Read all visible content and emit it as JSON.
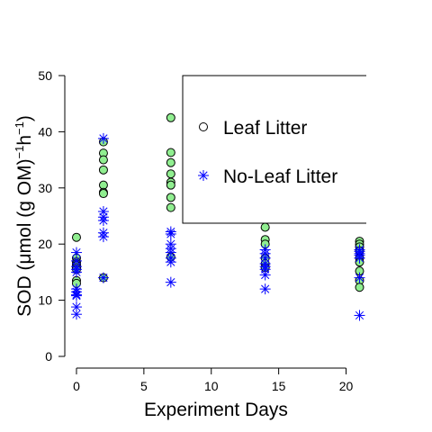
{
  "chart_data": {
    "type": "scatter",
    "xlabel": "Experiment Days",
    "ylabel_main": "SOD (",
    "ylabel_mu": "μ",
    "ylabel_mid": "mol (g OM)",
    "ylabel_sup1": "−1",
    "ylabel_h": "h",
    "ylabel_sup2": "−1",
    "ylabel_end": ")",
    "xlim": [
      -1,
      21.5
    ],
    "ylim": [
      0,
      50
    ],
    "xticks": [
      0,
      5,
      10,
      15,
      20
    ],
    "yticks": [
      0,
      10,
      20,
      30,
      40,
      50
    ],
    "legend_position": "top-right",
    "series": [
      {
        "name": "Leaf Litter",
        "marker": "circle",
        "fill": "#90ee90",
        "stroke": "#000000",
        "points": [
          [
            0,
            21.2
          ],
          [
            0,
            17.5
          ],
          [
            0,
            16.8
          ],
          [
            0,
            16.5
          ],
          [
            0,
            16.2
          ],
          [
            0,
            15.8
          ],
          [
            0,
            15.5
          ],
          [
            0,
            13.5
          ],
          [
            0,
            13.0
          ],
          [
            2,
            38.2
          ],
          [
            2,
            36.2
          ],
          [
            2,
            35.0
          ],
          [
            2,
            33.2
          ],
          [
            2,
            30.5
          ],
          [
            2,
            29.2
          ],
          [
            2,
            29.0
          ],
          [
            2,
            14.0
          ],
          [
            7,
            42.5
          ],
          [
            7,
            36.3
          ],
          [
            7,
            34.5
          ],
          [
            7,
            32.5
          ],
          [
            7,
            31.0
          ],
          [
            7,
            30.5
          ],
          [
            7,
            28.3
          ],
          [
            7,
            26.5
          ],
          [
            7,
            17.7
          ],
          [
            14,
            23.0
          ],
          [
            14,
            20.8
          ],
          [
            14,
            20.0
          ],
          [
            14,
            17.5
          ],
          [
            14,
            16.5
          ],
          [
            14,
            15.8
          ],
          [
            21,
            20.5
          ],
          [
            21,
            20.0
          ],
          [
            21,
            19.5
          ],
          [
            21,
            18.8
          ],
          [
            21,
            17.5
          ],
          [
            21,
            16.8
          ],
          [
            21,
            15.2
          ],
          [
            21,
            13.5
          ],
          [
            21,
            12.3
          ]
        ]
      },
      {
        "name": "No-Leaf Litter",
        "marker": "asterisk",
        "fill": "none",
        "stroke": "#0000ff",
        "points": [
          [
            0,
            18.5
          ],
          [
            0,
            17.0
          ],
          [
            0,
            16.0
          ],
          [
            0,
            15.5
          ],
          [
            0,
            15.0
          ],
          [
            0,
            12.0
          ],
          [
            0,
            11.5
          ],
          [
            0,
            11.0
          ],
          [
            0,
            10.8
          ],
          [
            0,
            8.8
          ],
          [
            0,
            7.5
          ],
          [
            2,
            38.8
          ],
          [
            2,
            25.8
          ],
          [
            2,
            24.8
          ],
          [
            2,
            24.2
          ],
          [
            2,
            22.0
          ],
          [
            2,
            21.3
          ],
          [
            2,
            14.0
          ],
          [
            7,
            22.2
          ],
          [
            7,
            21.8
          ],
          [
            7,
            20.0
          ],
          [
            7,
            19.2
          ],
          [
            7,
            18.5
          ],
          [
            7,
            17.5
          ],
          [
            7,
            16.8
          ],
          [
            7,
            13.2
          ],
          [
            14,
            19.0
          ],
          [
            14,
            18.3
          ],
          [
            14,
            17.5
          ],
          [
            14,
            16.5
          ],
          [
            14,
            16.0
          ],
          [
            14,
            15.5
          ],
          [
            14,
            14.5
          ],
          [
            14,
            12.0
          ],
          [
            21,
            19.0
          ],
          [
            21,
            18.7
          ],
          [
            21,
            18.3
          ],
          [
            21,
            18.0
          ],
          [
            21,
            17.5
          ],
          [
            21,
            14.0
          ],
          [
            21,
            7.3
          ]
        ]
      }
    ]
  }
}
